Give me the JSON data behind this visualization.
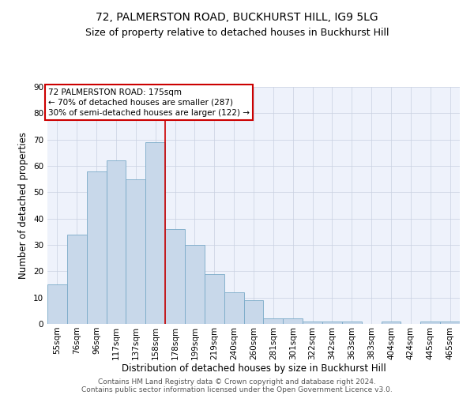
{
  "title": "72, PALMERSTON ROAD, BUCKHURST HILL, IG9 5LG",
  "subtitle": "Size of property relative to detached houses in Buckhurst Hill",
  "xlabel": "Distribution of detached houses by size in Buckhurst Hill",
  "ylabel": "Number of detached properties",
  "bar_labels": [
    "55sqm",
    "76sqm",
    "96sqm",
    "117sqm",
    "137sqm",
    "158sqm",
    "178sqm",
    "199sqm",
    "219sqm",
    "240sqm",
    "260sqm",
    "281sqm",
    "301sqm",
    "322sqm",
    "342sqm",
    "363sqm",
    "383sqm",
    "404sqm",
    "424sqm",
    "445sqm",
    "465sqm"
  ],
  "bar_heights": [
    15,
    34,
    58,
    62,
    55,
    69,
    36,
    30,
    19,
    12,
    9,
    2,
    2,
    1,
    1,
    1,
    0,
    1,
    0,
    1,
    1
  ],
  "bar_color": "#c8d8ea",
  "bar_edge_color": "#7aaac8",
  "red_line_x": 5.5,
  "red_line_color": "#cc0000",
  "annotation_line1": "72 PALMERSTON ROAD: 175sqm",
  "annotation_line2": "← 70% of detached houses are smaller (287)",
  "annotation_line3": "30% of semi-detached houses are larger (122) →",
  "annotation_box_color": "#cc0000",
  "ylim": [
    0,
    90
  ],
  "yticks": [
    0,
    10,
    20,
    30,
    40,
    50,
    60,
    70,
    80,
    90
  ],
  "grid_color": "#c8d0e0",
  "background_color": "#eef2fb",
  "footer_line1": "Contains HM Land Registry data © Crown copyright and database right 2024.",
  "footer_line2": "Contains public sector information licensed under the Open Government Licence v3.0.",
  "title_fontsize": 10,
  "subtitle_fontsize": 9,
  "axis_label_fontsize": 8.5,
  "tick_fontsize": 7.5,
  "annotation_fontsize": 7.5,
  "footer_fontsize": 6.5
}
